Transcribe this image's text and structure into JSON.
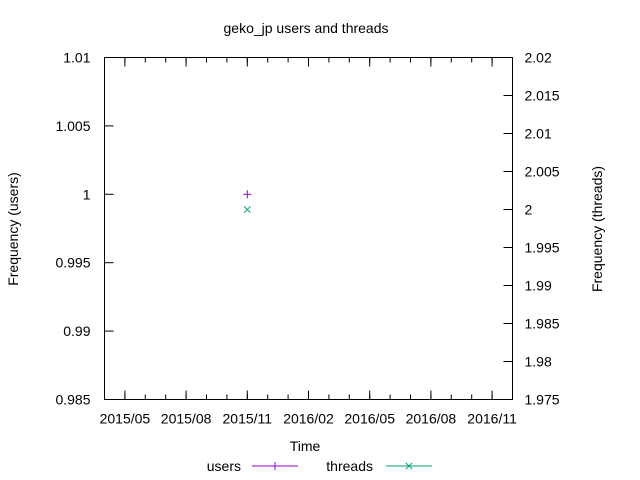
{
  "chart_data": {
    "type": "scatter",
    "title": "geko_jp users and threads",
    "xlabel": "Time",
    "ylabel": "Frequency (users)",
    "y2label": "Frequency (threads)",
    "x_ticks": [
      "2015/05",
      "2015/08",
      "2015/11",
      "2016/02",
      "2016/05",
      "2016/08",
      "2016/11"
    ],
    "y_ticks": [
      "0.985",
      "0.99",
      "0.995",
      "1",
      "1.005",
      "1.01"
    ],
    "y2_ticks": [
      "1.975",
      "1.98",
      "1.985",
      "1.99",
      "1.995",
      "2",
      "2.005",
      "2.01",
      "2.015",
      "2.02"
    ],
    "ylim": [
      0.985,
      1.01
    ],
    "y2lim": [
      1.975,
      2.02
    ],
    "grid": false,
    "legend_position": "bottom-center",
    "series": [
      {
        "name": "users",
        "axis": "y",
        "marker": "plus",
        "color": "#9400d3",
        "points": [
          {
            "x": "2015/11",
            "y": 1
          }
        ]
      },
      {
        "name": "threads",
        "axis": "y2",
        "marker": "cross",
        "color": "#009e73",
        "points": [
          {
            "x": "2015/11",
            "y": 2
          }
        ]
      }
    ]
  }
}
